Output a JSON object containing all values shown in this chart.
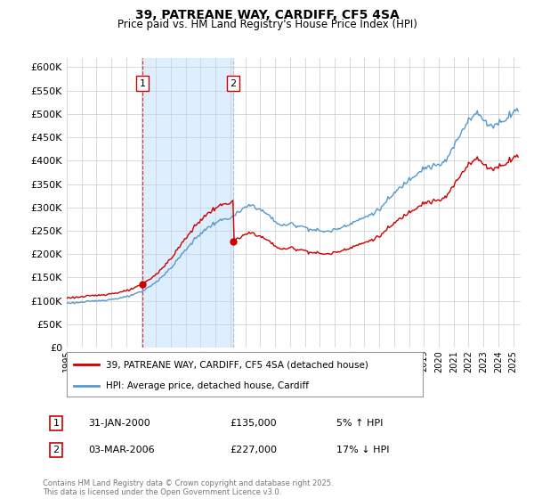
{
  "title": "39, PATREANE WAY, CARDIFF, CF5 4SA",
  "subtitle": "Price paid vs. HM Land Registry's House Price Index (HPI)",
  "sale1": {
    "date": "31-JAN-2000",
    "price": 135000,
    "label": "1",
    "hpi_diff": "5% ↑ HPI",
    "t": 2000.083
  },
  "sale2": {
    "date": "03-MAR-2006",
    "price": 227000,
    "label": "2",
    "hpi_diff": "17% ↓ HPI",
    "t": 2006.167
  },
  "legend1": "39, PATREANE WAY, CARDIFF, CF5 4SA (detached house)",
  "legend2": "HPI: Average price, detached house, Cardiff",
  "footer": "Contains HM Land Registry data © Crown copyright and database right 2025.\nThis data is licensed under the Open Government Licence v3.0.",
  "red_color": "#cc0000",
  "blue_color": "#5599cc",
  "shade_color": "#ddeeff",
  "grid_color": "#cccccc",
  "background_color": "#ffffff",
  "ylim": [
    0,
    620000
  ],
  "yticks": [
    0,
    50000,
    100000,
    150000,
    200000,
    250000,
    300000,
    350000,
    400000,
    450000,
    500000,
    550000,
    600000
  ],
  "xlim_start": 1995.0,
  "xlim_end": 2025.5
}
